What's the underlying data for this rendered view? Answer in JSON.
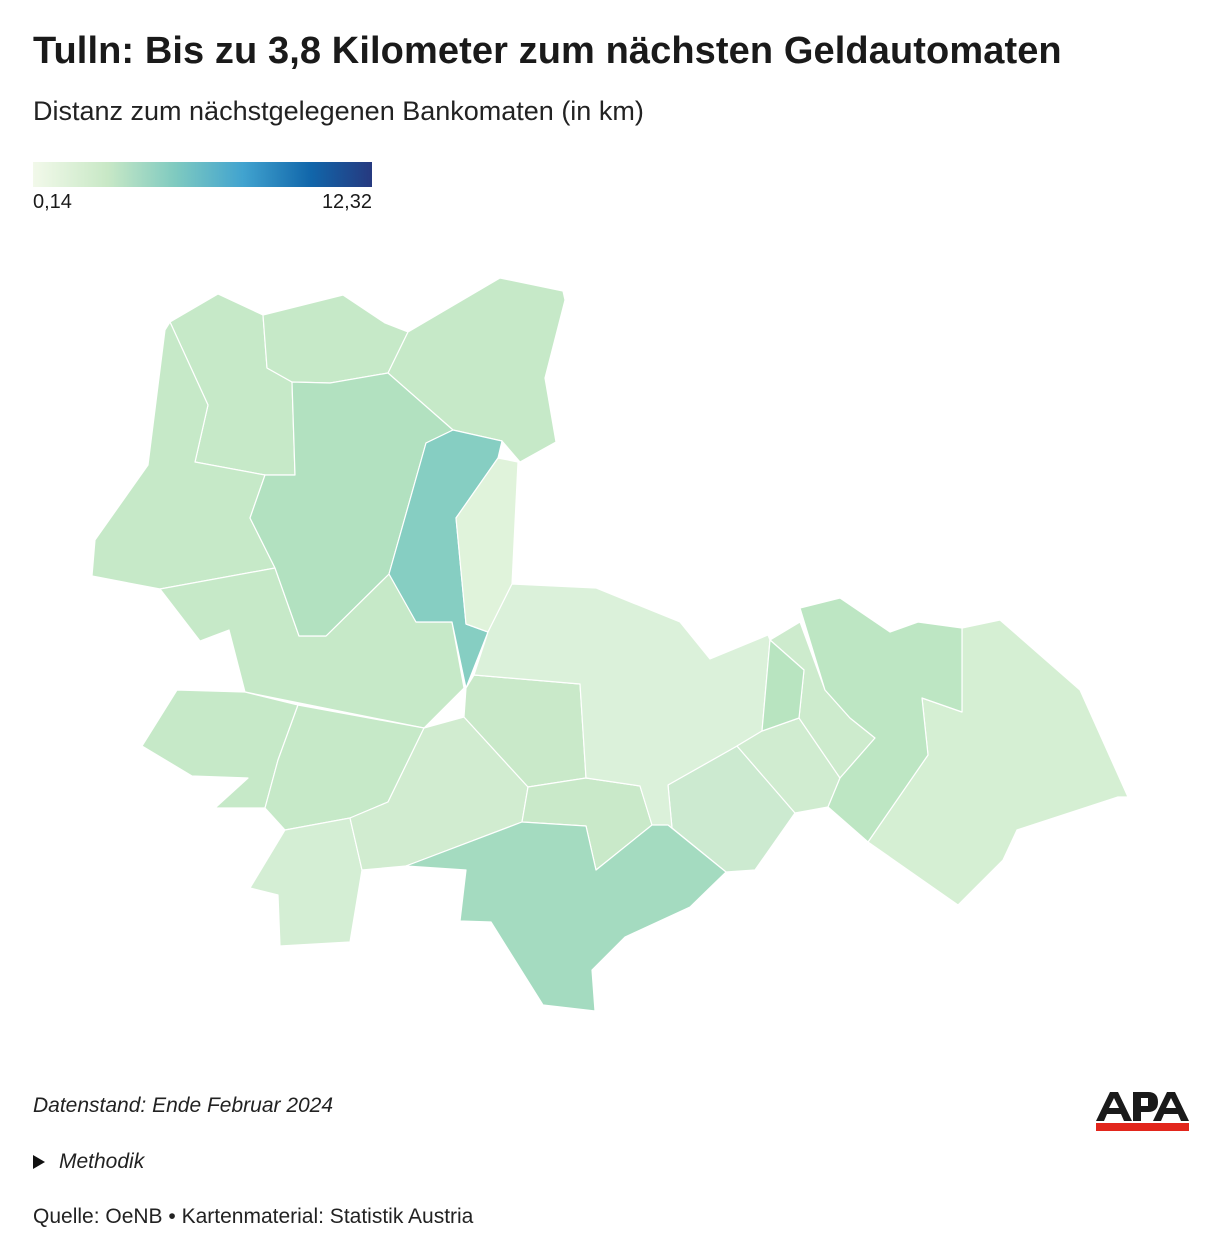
{
  "title": "Tulln: Bis zu 3,8 Kilometer zum nächsten Geldautomaten",
  "subtitle": "Distanz zum nächstgelegenen Bankomaten (in km)",
  "legend": {
    "min_label": "0,14",
    "max_label": "12,32",
    "min_value": 0.14,
    "max_value": 12.32
  },
  "colors": {
    "scale": [
      "#f2f9ea",
      "#c8e8c6",
      "#7fcac0",
      "#41a3cf",
      "#1166aa",
      "#26397f"
    ],
    "border": "#ffffff",
    "logo_dark": "#1a1a1a",
    "logo_red": "#e2261c"
  },
  "footer": {
    "data_date": "Datenstand: Ende Februar 2024",
    "method_label": "Methodik",
    "source": "Quelle: OeNB • Kartenmaterial: Statistik Austria"
  },
  "logo": {
    "text": "APA"
  },
  "map_regions": [
    {
      "id": "r01",
      "color": "#c6e9c8"
    },
    {
      "id": "r02",
      "color": "#c6e9c8"
    },
    {
      "id": "r03",
      "color": "#c6e9c8"
    },
    {
      "id": "r04",
      "color": "#c6e9c8"
    },
    {
      "id": "r05",
      "color": "#c6e9c8"
    },
    {
      "id": "r06",
      "color": "#b2e1c0"
    },
    {
      "id": "r07",
      "color": "#86cec2"
    },
    {
      "id": "r08",
      "color": "#e0f3db"
    },
    {
      "id": "r09",
      "color": "#c6e9c8"
    },
    {
      "id": "r10",
      "color": "#c6e9c8"
    },
    {
      "id": "r11",
      "color": "#d4eed4"
    },
    {
      "id": "r12",
      "color": "#d1ecd0"
    },
    {
      "id": "r13",
      "color": "#c9e9c9"
    },
    {
      "id": "r14",
      "color": "#c9e9c9"
    },
    {
      "id": "r15",
      "color": "#ccead0"
    },
    {
      "id": "r16",
      "color": "#dbf1da"
    },
    {
      "id": "r17",
      "color": "#d0ecd0"
    },
    {
      "id": "r18",
      "color": "#a4dbc0"
    },
    {
      "id": "r19",
      "color": "#cdebcd"
    },
    {
      "id": "r20",
      "color": "#b8e4c0"
    },
    {
      "id": "r21",
      "color": "#d5efd3"
    },
    {
      "id": "r22",
      "color": "#bde6c3"
    },
    {
      "id": "r23",
      "color": "#d8f0d6"
    },
    {
      "id": "r24",
      "color": "#daf1d8"
    }
  ]
}
